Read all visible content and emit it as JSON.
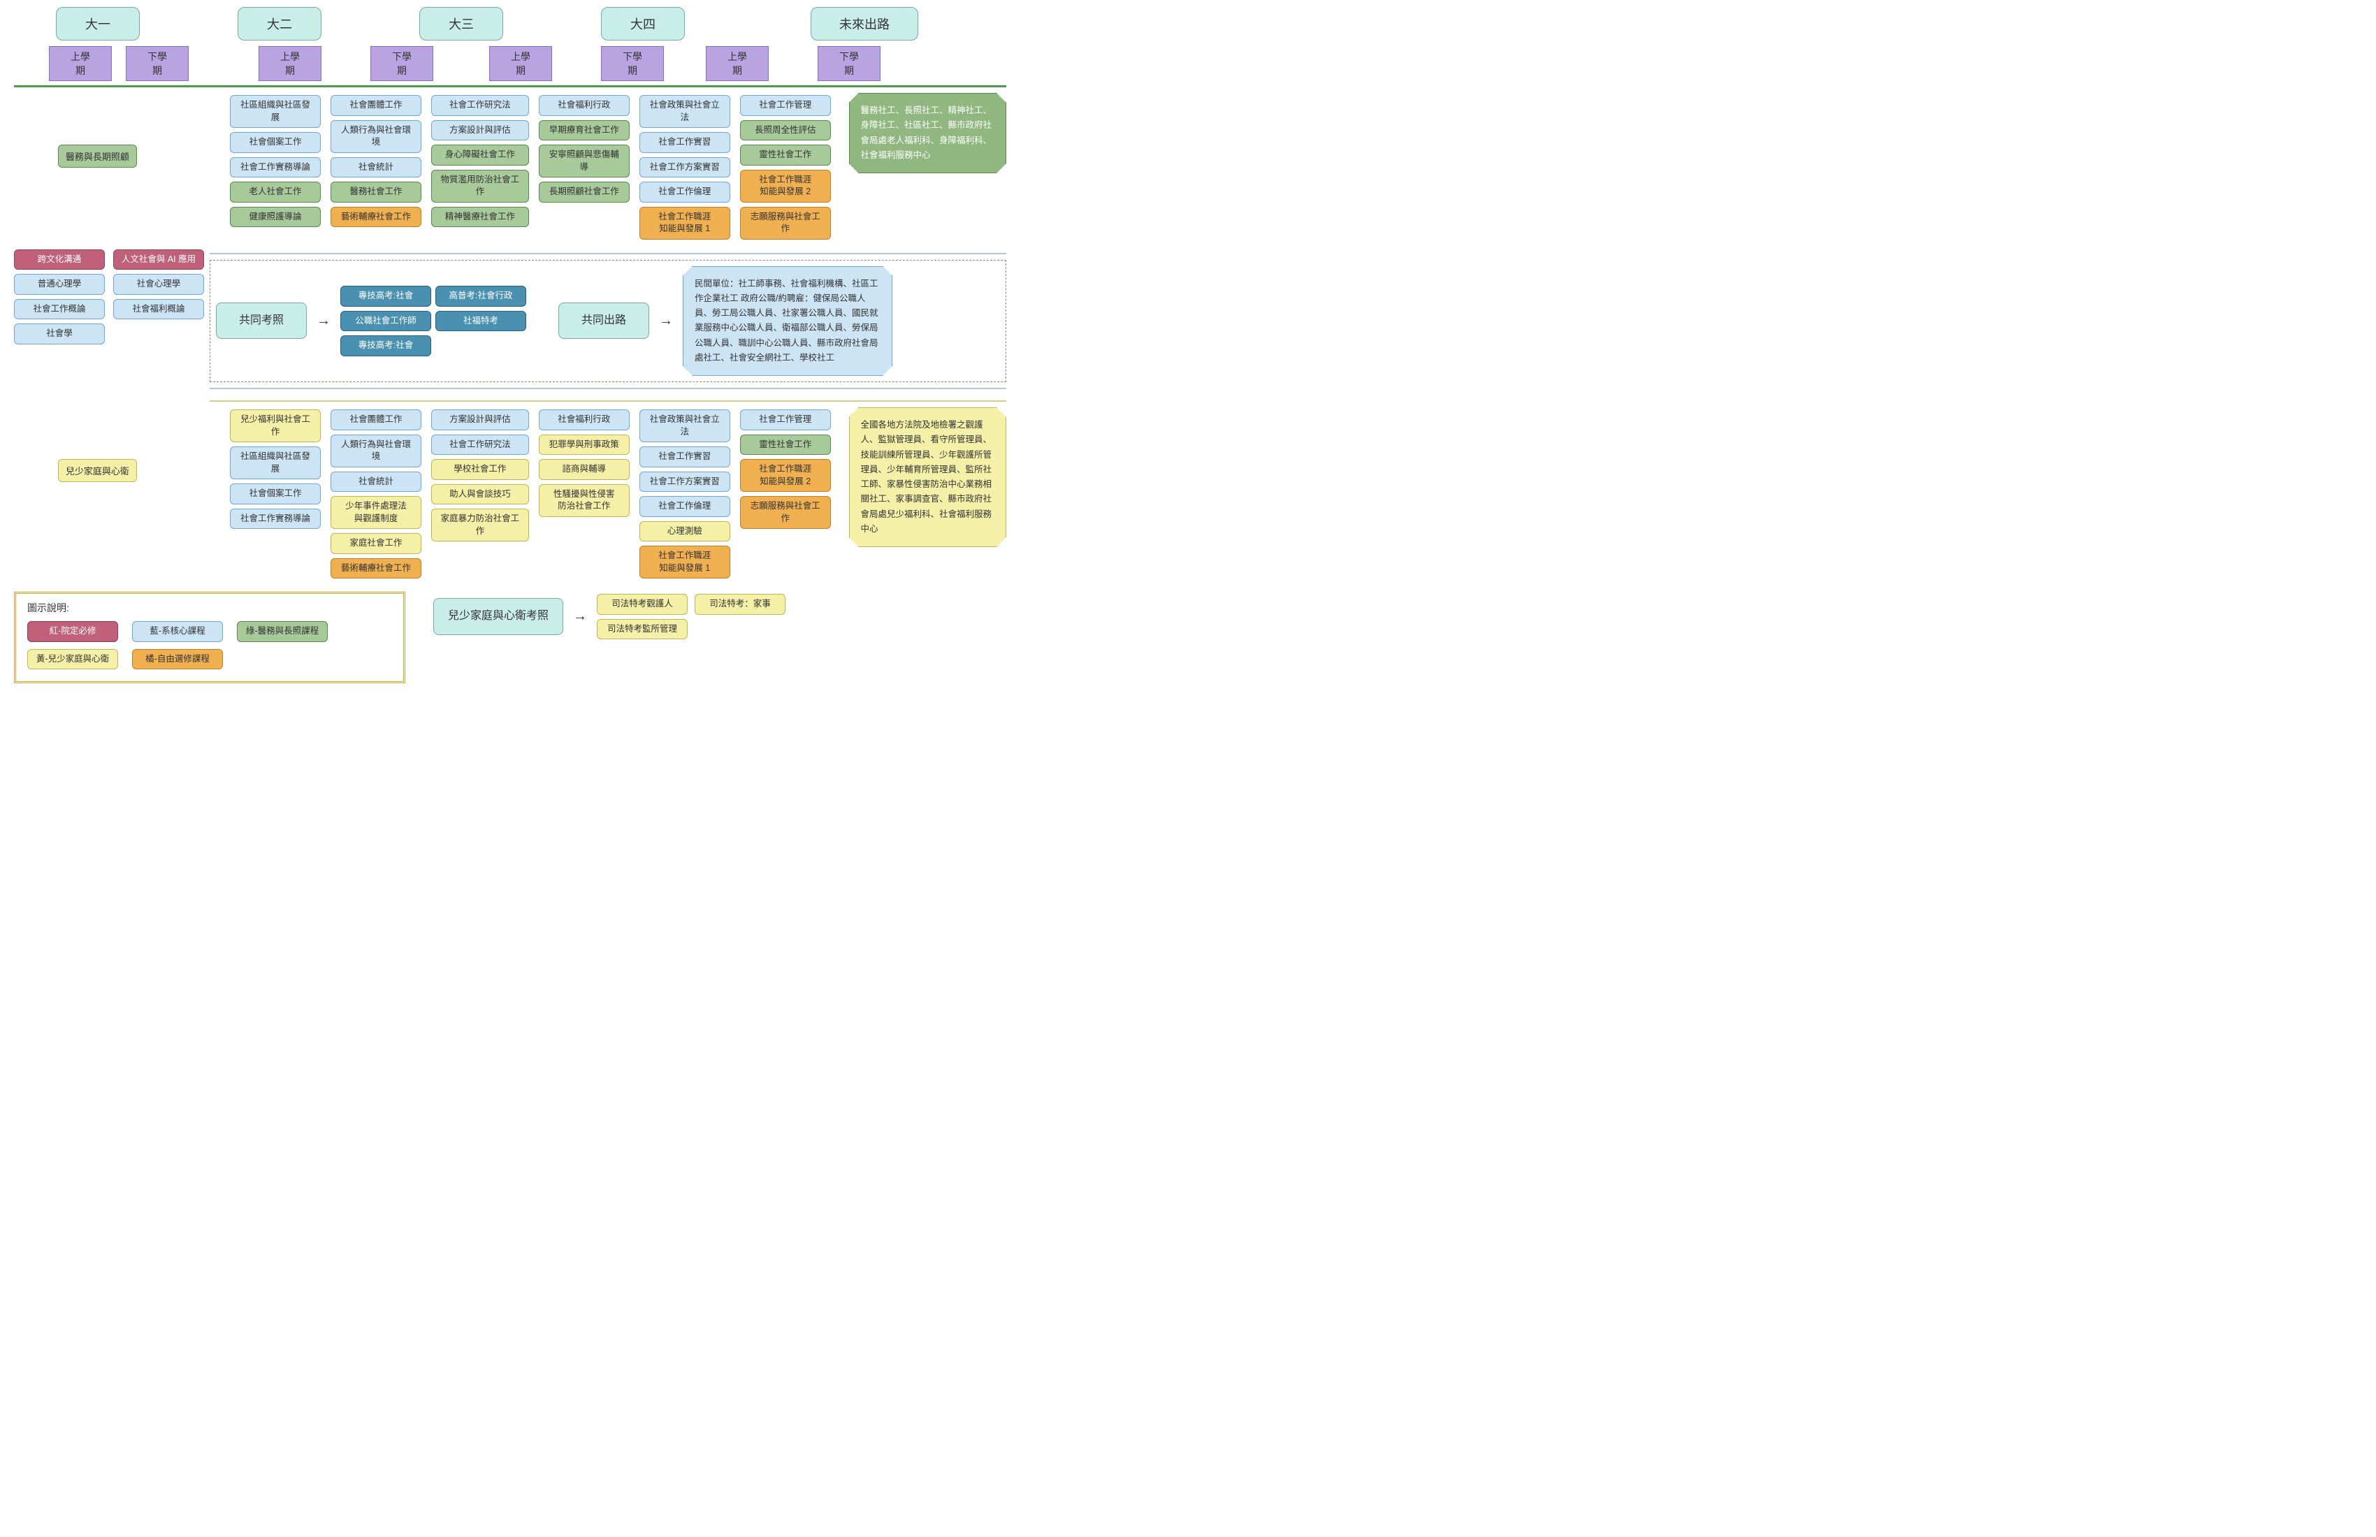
{
  "colors": {
    "year_bg": "#c9ede9",
    "sem_bg": "#b9a3e0",
    "blue": "#cde4f5",
    "green": "#8fb77f",
    "green2": "#a8c99a",
    "orange": "#f0b050",
    "yellow": "#f5f0a8",
    "red": "#c0607a",
    "teal": "#4a90b0"
  },
  "years": [
    "大一",
    "大二",
    "大三",
    "大四",
    "未來出路"
  ],
  "semesters": [
    "上學期",
    "下學期"
  ],
  "left_panel": {
    "row1": [
      {
        "t": "跨文化溝通",
        "c": "red"
      },
      {
        "t": "人文社會與 AI 應用",
        "c": "red"
      }
    ],
    "row2": [
      {
        "t": "普通心理學",
        "c": "blue"
      },
      {
        "t": "社會心理學",
        "c": "blue"
      }
    ],
    "row3": [
      {
        "t": "社會工作概論",
        "c": "blue"
      },
      {
        "t": "社會福利概論",
        "c": "blue"
      }
    ],
    "row4": [
      {
        "t": "社會學",
        "c": "blue"
      }
    ]
  },
  "track1": {
    "label": "醫務與長期照顧",
    "y2s1": [
      {
        "t": "社區組織與社區發展",
        "c": "blue"
      },
      {
        "t": "社會個案工作",
        "c": "blue"
      },
      {
        "t": "社會工作實務導論",
        "c": "blue"
      },
      {
        "t": "老人社會工作",
        "c": "green2"
      },
      {
        "t": "健康照護導論",
        "c": "green2"
      }
    ],
    "y2s2": [
      {
        "t": "社會團體工作",
        "c": "blue"
      },
      {
        "t": "人類行為與社會環境",
        "c": "blue"
      },
      {
        "t": "社會統計",
        "c": "blue"
      },
      {
        "t": "醫務社會工作",
        "c": "green2"
      },
      {
        "t": "藝術輔療社會工作",
        "c": "orange"
      }
    ],
    "y3s1": [
      {
        "t": "社會工作研究法",
        "c": "blue"
      },
      {
        "t": "方案設計與評估",
        "c": "blue"
      },
      {
        "t": "身心障礙社會工作",
        "c": "green2"
      },
      {
        "t": "物質濫用防治社會工作",
        "c": "green2"
      },
      {
        "t": "精神醫療社會工作",
        "c": "green2"
      }
    ],
    "y3s2": [
      {
        "t": "社會福利行政",
        "c": "blue"
      },
      {
        "t": "早期療育社會工作",
        "c": "green2"
      },
      {
        "t": "安寧照顧與悲傷輔導",
        "c": "green2"
      },
      {
        "t": "長期照顧社會工作",
        "c": "green2"
      }
    ],
    "y4s1": [
      {
        "t": "社會政策與社會立法",
        "c": "blue"
      },
      {
        "t": "社會工作實習",
        "c": "blue"
      },
      {
        "t": "社會工作方案實習",
        "c": "blue"
      },
      {
        "t": "社會工作倫理",
        "c": "blue"
      },
      {
        "t": "社會工作職涯\n知能與發展 1",
        "c": "orange"
      }
    ],
    "y4s2": [
      {
        "t": "社會工作管理",
        "c": "blue"
      },
      {
        "t": "長照周全性評估",
        "c": "green2"
      },
      {
        "t": "靈性社會工作",
        "c": "green2"
      },
      {
        "t": "社會工作職涯\n知能與發展 2",
        "c": "orange"
      },
      {
        "t": "志願服務與社會工作",
        "c": "orange"
      }
    ],
    "outcome": "醫務社工、長照社工、精神社工、身障社工、社區社工、縣市政府社會局處老人福利科、身障福利科、社會福利服務中心"
  },
  "common": {
    "exam_label": "共同考照",
    "exams": [
      {
        "t": "專技高考:社會",
        "c": "teal"
      },
      {
        "t": "高普考:社會行政",
        "c": "teal"
      },
      {
        "t": "公職社會工作師",
        "c": "teal"
      },
      {
        "t": "社福特考",
        "c": "teal"
      },
      {
        "t": "專技高考:社會",
        "c": "teal"
      }
    ],
    "path_label": "共同出路",
    "path_text": "民間單位：社工師事務、社會福利機構、社區工作企業社工\n政府公職/約聘雇：健保局公職人員、勞工局公職人員、社家署公職人員、國民就業服務中心公職人員、衛福部公職人員、勞保局公職人員、職訓中心公職人員、縣市政府社會局處社工、社會安全網社工、學校社工"
  },
  "track2": {
    "label": "兒少家庭與心衛",
    "y2s1": [
      {
        "t": "兒少福利與社會工作",
        "c": "yellow"
      },
      {
        "t": "社區組織與社區發展",
        "c": "blue"
      },
      {
        "t": "社會個案工作",
        "c": "blue"
      },
      {
        "t": "社會工作實務導論",
        "c": "blue"
      }
    ],
    "y2s2": [
      {
        "t": "社會團體工作",
        "c": "blue"
      },
      {
        "t": "人類行為與社會環境",
        "c": "blue"
      },
      {
        "t": "社會統計",
        "c": "blue"
      },
      {
        "t": "少年事件處理法\n與觀護制度",
        "c": "yellow"
      },
      {
        "t": "家庭社會工作",
        "c": "yellow"
      },
      {
        "t": "藝術輔療社會工作",
        "c": "orange"
      }
    ],
    "y3s1": [
      {
        "t": "方案設計與評估",
        "c": "blue"
      },
      {
        "t": "社會工作研究法",
        "c": "blue"
      },
      {
        "t": "學校社會工作",
        "c": "yellow"
      },
      {
        "t": "助人與會談技巧",
        "c": "yellow"
      },
      {
        "t": "家庭暴力防治社會工作",
        "c": "yellow"
      }
    ],
    "y3s2": [
      {
        "t": "社會福利行政",
        "c": "blue"
      },
      {
        "t": "犯罪學與刑事政策",
        "c": "yellow"
      },
      {
        "t": "諮商與輔導",
        "c": "yellow"
      },
      {
        "t": "性騷擾與性侵害\n防治社會工作",
        "c": "yellow"
      }
    ],
    "y4s1": [
      {
        "t": "社會政策與社會立法",
        "c": "blue"
      },
      {
        "t": "社會工作實習",
        "c": "blue"
      },
      {
        "t": "社會工作方案實習",
        "c": "blue"
      },
      {
        "t": "社會工作倫理",
        "c": "blue"
      },
      {
        "t": "心理測驗",
        "c": "yellow"
      },
      {
        "t": "社會工作職涯\n知能與發展 1",
        "c": "orange"
      }
    ],
    "y4s2": [
      {
        "t": "社會工作管理",
        "c": "blue"
      },
      {
        "t": "靈性社會工作",
        "c": "green2"
      },
      {
        "t": "社會工作職涯\n知能與發展 2",
        "c": "orange"
      },
      {
        "t": "志願服務與社會工作",
        "c": "orange"
      }
    ],
    "outcome": "全國各地方法院及地檢署之觀護人、監獄管理員、看守所管理員、技能訓練所管理員、少年觀護所管理員、少年輔育所管理員、監所社工師、家暴性侵害防治中心業務相關社工、家事調查官、縣市政府社會局處兒少福利科、社會福利服務中心"
  },
  "track2_exam": {
    "label": "兒少家庭與心衛考照",
    "items": [
      {
        "t": "司法特考觀護人",
        "c": "yellow"
      },
      {
        "t": "司法特考：家事",
        "c": "yellow"
      },
      {
        "t": "司法特考監所管理",
        "c": "yellow"
      }
    ]
  },
  "legend": {
    "title": "圖示說明:",
    "items": [
      {
        "t": "紅-院定必修",
        "c": "red"
      },
      {
        "t": "藍-系核心課程",
        "c": "blue"
      },
      {
        "t": "綠-醫務與長照課程",
        "c": "green2"
      },
      {
        "t": "黃-兒少家庭與心衛",
        "c": "yellow"
      },
      {
        "t": "橘-自由選修課程",
        "c": "orange"
      }
    ]
  }
}
